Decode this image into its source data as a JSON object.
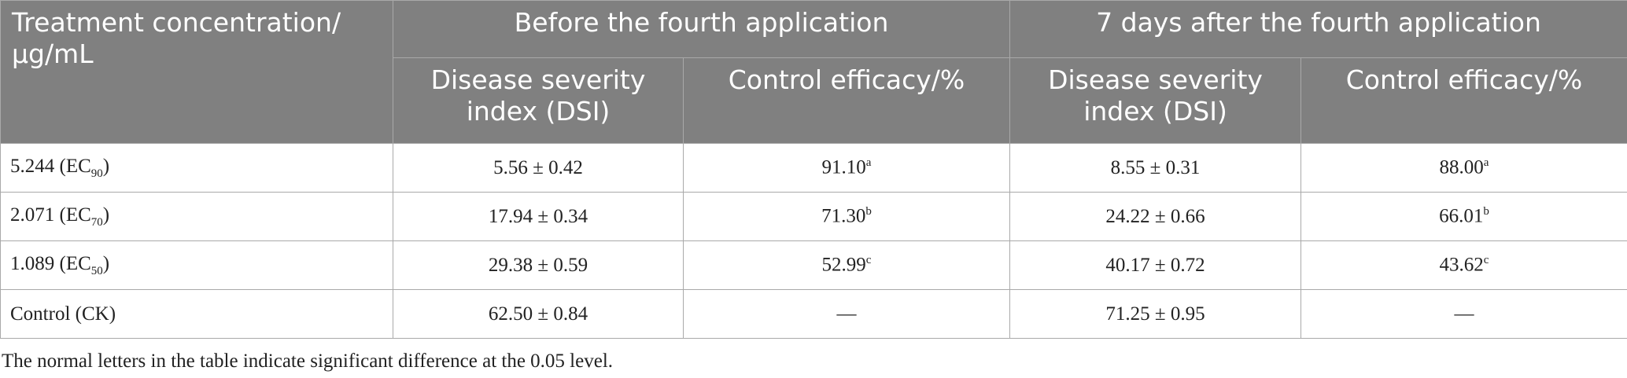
{
  "table": {
    "header": {
      "first": [
        "Treatment concentration/",
        "μg/mL"
      ],
      "groups": [
        "Before the fourth application",
        "7 days after the fourth application"
      ],
      "sub": [
        "Disease severity index (DSI)",
        "Control efficacy/%",
        "Disease severity index (DSI)",
        "Control efficacy/%"
      ]
    },
    "rows": [
      [
        {
          "text": "5.244 (EC",
          "sub": "90",
          "after": ")"
        },
        {
          "text": "5.56 ± 0.42"
        },
        {
          "text": "91.10",
          "sup": "a"
        },
        {
          "text": "8.55 ± 0.31"
        },
        {
          "text": "88.00",
          "sup": "a"
        }
      ],
      [
        {
          "text": "2.071 (EC",
          "sub": "70",
          "after": ")"
        },
        {
          "text": "17.94 ± 0.34"
        },
        {
          "text": "71.30",
          "sup": "b"
        },
        {
          "text": "24.22 ± 0.66"
        },
        {
          "text": "66.01",
          "sup": "b"
        }
      ],
      [
        {
          "text": "1.089 (EC",
          "sub": "50",
          "after": ")"
        },
        {
          "text": "29.38 ± 0.59"
        },
        {
          "text": "52.99",
          "sup": "c"
        },
        {
          "text": "40.17 ± 0.72"
        },
        {
          "text": "43.62",
          "sup": "c"
        }
      ],
      [
        {
          "text": "Control (CK)"
        },
        {
          "text": "62.50 ± 0.84"
        },
        {
          "text": "—"
        },
        {
          "text": "71.25 ± 0.95"
        },
        {
          "text": "—"
        }
      ]
    ],
    "note": "The normal letters in the table indicate significant difference at the 0.05 level."
  }
}
